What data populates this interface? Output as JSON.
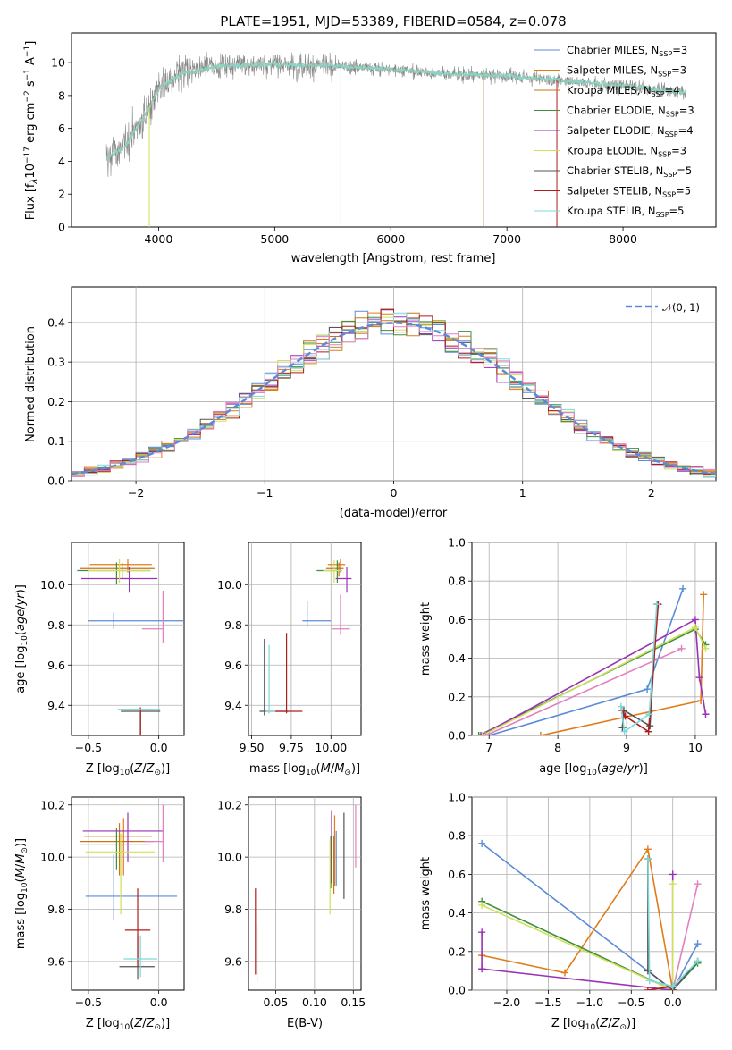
{
  "figure_title": "PLATE=1951, MJD=53389, FIBERID=0584, z=0.078",
  "colors": {
    "Chabrier MILES": "#5b8bd8",
    "Salpeter MILES": "#e07b1a",
    "Kroupa MILES": "#c87514",
    "Chabrier ELODIE": "#3f8f3f",
    "Salpeter ELODIE": "#9932b4",
    "Kroupa ELODIE": "#cfe05a",
    "Chabrier STELIB": "#555555",
    "Salpeter STELIB": "#b01c1c",
    "Kroupa STELIB": "#7fd8d8",
    "pink": "#e27fc0"
  },
  "chart_data": [
    {
      "id": "spectrum",
      "type": "line",
      "title": "PLATE=1951, MJD=53389, FIBERID=0584, z=0.078",
      "xlabel": "wavelength [Angstrom, rest frame]",
      "ylabel": "Flux [fλ10⁻¹⁷ erg cm⁻² s⁻¹ A⁻¹]",
      "xlim": [
        3250,
        8800
      ],
      "ylim": [
        0,
        11.8
      ],
      "xticks": [
        4000,
        5000,
        6000,
        7000,
        8000
      ],
      "yticks": [
        0,
        2,
        4,
        6,
        8,
        10
      ],
      "grid": false,
      "legend_position": "right",
      "legend": [
        "Chabrier MILES, N_SSP=3",
        "Salpeter MILES, N_SSP=3",
        "Kroupa MILES, N_SSP=4",
        "Chabrier ELODIE, N_SSP=3",
        "Salpeter ELODIE, N_SSP=4",
        "Kroupa ELODIE, N_SSP=3",
        "Chabrier STELIB, N_SSP=5",
        "Salpeter STELIB, N_SSP=5",
        "Kroupa STELIB, N_SSP=5"
      ],
      "data_range_x": [
        3550,
        8540
      ],
      "continuum": {
        "x": [
          3550,
          3700,
          3900,
          4000,
          4200,
          4500,
          5000,
          5500,
          6000,
          6500,
          7000,
          7500,
          8000,
          8500
        ],
        "y": [
          4.2,
          4.8,
          7.0,
          8.4,
          9.3,
          9.8,
          9.9,
          9.8,
          9.6,
          9.3,
          9.2,
          8.9,
          8.6,
          8.2
        ]
      }
    },
    {
      "id": "residuals",
      "type": "step",
      "xlabel": "(data-model)/error",
      "ylabel": "Normed distribution",
      "xlim": [
        -2.5,
        2.5
      ],
      "ylim": [
        0,
        0.49
      ],
      "xticks": [
        -2,
        -1,
        0,
        1,
        2
      ],
      "yticks": [
        0.0,
        0.1,
        0.2,
        0.3,
        0.4
      ],
      "grid": true,
      "legend_position": "top-right",
      "legend_label": "𝒩(0, 1)",
      "bin_width": 0.1
    },
    {
      "id": "age-vs-Z",
      "type": "errorbar",
      "xlabel": "Z [log₁₀(Z/Z⊙)]",
      "ylabel": "age  [log₁₀(age/yr)]",
      "xlim": [
        -0.62,
        0.18
      ],
      "ylim": [
        9.25,
        10.21
      ],
      "xticks": [
        -0.5,
        0.0
      ],
      "yticks": [
        9.4,
        9.6,
        9.8,
        10.0
      ],
      "grid": true,
      "points": [
        {
          "color": "Chabrier MILES",
          "x": -0.32,
          "xerr": [
            0.18,
            0.52
          ],
          "y": 9.82,
          "yerr": [
            0.04,
            0.04
          ]
        },
        {
          "color": "Salpeter MILES",
          "x": -0.22,
          "xerr": [
            0.27,
            0.17
          ],
          "y": 10.1,
          "yerr": [
            0.04,
            0.03
          ]
        },
        {
          "color": "Kroupa MILES",
          "x": -0.26,
          "xerr": [
            0.3,
            0.23
          ],
          "y": 10.08,
          "yerr": [
            0.05,
            0.03
          ]
        },
        {
          "color": "Chabrier ELODIE",
          "x": -0.3,
          "xerr": [
            0.28,
            0.24
          ],
          "y": 10.07,
          "yerr": [
            0.07,
            0.04
          ]
        },
        {
          "color": "Salpeter ELODIE",
          "x": -0.21,
          "xerr": [
            0.34,
            0.2
          ],
          "y": 10.03,
          "yerr": [
            0.07,
            0.06
          ]
        },
        {
          "color": "Kroupa ELODIE",
          "x": -0.28,
          "xerr": [
            0.22,
            0.22
          ],
          "y": 10.07,
          "yerr": [
            0.06,
            0.06
          ]
        },
        {
          "color": "Chabrier STELIB",
          "x": -0.13,
          "xerr": [
            0.14,
            0.14
          ],
          "y": 9.37,
          "yerr": [
            0.36,
            0.01
          ]
        },
        {
          "color": "Salpeter STELIB",
          "x": -0.13,
          "xerr": [
            0.0,
            0.0
          ],
          "y": 9.38,
          "yerr": [
            0.37,
            0.01
          ]
        },
        {
          "color": "Kroupa STELIB",
          "x": -0.14,
          "xerr": [
            0.15,
            0.15
          ],
          "y": 9.38,
          "yerr": [
            0.37,
            0.01
          ]
        },
        {
          "color": "pink",
          "x": 0.03,
          "xerr": [
            0.15,
            0.0
          ],
          "y": 9.78,
          "yerr": [
            0.07,
            0.19
          ]
        }
      ]
    },
    {
      "id": "age-vs-mass",
      "type": "errorbar",
      "xlabel": "mass [log₁₀(M/M⊙)]",
      "ylabel": "",
      "xlim": [
        9.48,
        10.19
      ],
      "ylim": [
        9.25,
        10.21
      ],
      "xticks": [
        9.5,
        9.75,
        10.0
      ],
      "yticks": [
        9.4,
        9.6,
        9.8,
        10.0
      ],
      "grid": true,
      "points": [
        {
          "color": "Chabrier MILES",
          "x": 9.85,
          "xerr": [
            0.03,
            0.15
          ],
          "y": 9.82,
          "yerr": [
            0.03,
            0.1
          ]
        },
        {
          "color": "Salpeter MILES",
          "x": 10.06,
          "xerr": [
            0.08,
            0.03
          ],
          "y": 10.1,
          "yerr": [
            0.04,
            0.03
          ]
        },
        {
          "color": "Kroupa MILES",
          "x": 10.05,
          "xerr": [
            0.08,
            0.03
          ],
          "y": 10.08,
          "yerr": [
            0.04,
            0.03
          ]
        },
        {
          "color": "Chabrier ELODIE",
          "x": 10.04,
          "xerr": [
            0.13,
            0.03
          ],
          "y": 10.07,
          "yerr": [
            0.06,
            0.05
          ]
        },
        {
          "color": "Salpeter ELODIE",
          "x": 10.1,
          "xerr": [
            0.07,
            0.03
          ],
          "y": 10.03,
          "yerr": [
            0.07,
            0.06
          ]
        },
        {
          "color": "Kroupa ELODIE",
          "x": 10.02,
          "xerr": [
            0.07,
            0.05
          ],
          "y": 10.07,
          "yerr": [
            0.06,
            0.05
          ]
        },
        {
          "color": "Chabrier STELIB",
          "x": 9.58,
          "xerr": [
            0.03,
            0.15
          ],
          "y": 9.37,
          "yerr": [
            0.02,
            0.36
          ]
        },
        {
          "color": "Salpeter STELIB",
          "x": 9.72,
          "xerr": [
            0.07,
            0.1
          ],
          "y": 9.37,
          "yerr": [
            0.01,
            0.39
          ]
        },
        {
          "color": "Kroupa STELIB",
          "x": 9.61,
          "xerr": [
            0.02,
            0.04
          ],
          "y": 9.37,
          "yerr": [
            0.01,
            0.33
          ]
        },
        {
          "color": "pink",
          "x": 10.06,
          "xerr": [
            0.05,
            0.06
          ],
          "y": 9.78,
          "yerr": [
            0.03,
            0.17
          ]
        }
      ]
    },
    {
      "id": "mass-weight-vs-age",
      "type": "line",
      "xlabel": "age  [log₁₀(age/yr)]",
      "ylabel": "mass weight",
      "xlim": [
        6.75,
        10.3
      ],
      "ylim": [
        0.0,
        1.0
      ],
      "xticks": [
        7,
        8,
        9,
        10
      ],
      "yticks": [
        0.0,
        0.2,
        0.4,
        0.6,
        0.8,
        1.0
      ],
      "grid": true,
      "series": [
        {
          "color": "Chabrier MILES",
          "x": [
            7.0,
            9.3,
            9.82
          ],
          "y": [
            0.0,
            0.24,
            0.76
          ]
        },
        {
          "color": "Salpeter MILES",
          "x": [
            7.75,
            10.08,
            10.12
          ],
          "y": [
            0.0,
            0.18,
            0.73
          ]
        },
        {
          "color": "Chabrier ELODIE",
          "x": [
            6.85,
            10.0,
            10.15
          ],
          "y": [
            0.0,
            0.55,
            0.47
          ]
        },
        {
          "color": "Salpeter ELODIE",
          "x": [
            6.88,
            10.0,
            10.06,
            10.15
          ],
          "y": [
            0.0,
            0.6,
            0.3,
            0.11
          ]
        },
        {
          "color": "Kroupa ELODIE",
          "x": [
            6.9,
            10.0,
            10.15
          ],
          "y": [
            0.0,
            0.56,
            0.45
          ]
        },
        {
          "color": "pink",
          "x": [
            6.95,
            9.8
          ],
          "y": [
            0.0,
            0.45
          ]
        },
        {
          "color": "Chabrier STELIB",
          "x": [
            8.94,
            8.96,
            9.34,
            9.45
          ],
          "y": [
            0.04,
            0.13,
            0.05,
            0.68
          ]
        },
        {
          "color": "Salpeter STELIB",
          "x": [
            8.93,
            8.98,
            9.32,
            9.46
          ],
          "y": [
            0.13,
            0.1,
            0.02,
            0.68
          ]
        },
        {
          "color": "Kroupa STELIB",
          "x": [
            8.92,
            8.97,
            9.33,
            9.44
          ],
          "y": [
            0.15,
            0.02,
            0.11,
            0.68
          ]
        }
      ]
    },
    {
      "id": "mass-vs-Z",
      "type": "errorbar",
      "xlabel": "Z [log₁₀(Z/Z⊙)]",
      "ylabel": "mass [log₁₀(M/M⊙)]",
      "xlim": [
        -0.62,
        0.18
      ],
      "ylim": [
        9.49,
        10.23
      ],
      "xticks": [
        -0.5,
        0.0
      ],
      "yticks": [
        9.6,
        9.8,
        10.0,
        10.2
      ],
      "grid": true,
      "points": [
        {
          "color": "Chabrier MILES",
          "x": -0.32,
          "xerr": [
            0.2,
            0.45
          ],
          "y": 9.85,
          "yerr": [
            0.09,
            0.16
          ]
        },
        {
          "color": "Salpeter MILES",
          "x": -0.25,
          "xerr": [
            0.28,
            0.2
          ],
          "y": 10.08,
          "yerr": [
            0.15,
            0.07
          ]
        },
        {
          "color": "Kroupa MILES",
          "x": -0.28,
          "xerr": [
            0.28,
            0.24
          ],
          "y": 10.06,
          "yerr": [
            0.13,
            0.07
          ]
        },
        {
          "color": "Chabrier ELODIE",
          "x": -0.3,
          "xerr": [
            0.26,
            0.24
          ],
          "y": 10.05,
          "yerr": [
            0.1,
            0.06
          ]
        },
        {
          "color": "Salpeter ELODIE",
          "x": -0.22,
          "xerr": [
            0.32,
            0.26
          ],
          "y": 10.1,
          "yerr": [
            0.12,
            0.07
          ]
        },
        {
          "color": "Kroupa ELODIE",
          "x": -0.27,
          "xerr": [
            0.25,
            0.24
          ],
          "y": 10.02,
          "yerr": [
            0.24,
            0.07
          ]
        },
        {
          "color": "Chabrier STELIB",
          "x": -0.15,
          "xerr": [
            0.13,
            0.12
          ],
          "y": 9.58,
          "yerr": [
            0.05,
            0.12
          ]
        },
        {
          "color": "Salpeter STELIB",
          "x": -0.15,
          "xerr": [
            0.09,
            0.09
          ],
          "y": 9.72,
          "yerr": [
            0.14,
            0.16
          ]
        },
        {
          "color": "Kroupa STELIB",
          "x": -0.13,
          "xerr": [
            0.12,
            0.12
          ],
          "y": 9.61,
          "yerr": [
            0.07,
            0.09
          ]
        },
        {
          "color": "pink",
          "x": 0.03,
          "xerr": [
            0.13,
            0.0
          ],
          "y": 10.06,
          "yerr": [
            0.08,
            0.14
          ]
        }
      ]
    },
    {
      "id": "mass-vs-ebv",
      "type": "errorbar",
      "xlabel": "E(B-V)",
      "ylabel": "",
      "xlim": [
        0.015,
        0.16
      ],
      "ylim": [
        9.49,
        10.23
      ],
      "xticks": [
        0.05,
        0.1,
        0.15
      ],
      "yticks": [
        9.6,
        9.8,
        10.0,
        10.2
      ],
      "grid": true,
      "points": [
        {
          "color": "Chabrier MILES",
          "x": 0.128,
          "xerr": [
            0,
            0
          ],
          "y": 10.0,
          "yerr": [
            0.11,
            0.1
          ]
        },
        {
          "color": "Salpeter MILES",
          "x": 0.126,
          "xerr": [
            0,
            0
          ],
          "y": 10.05,
          "yerr": [
            0.16,
            0.11
          ]
        },
        {
          "color": "Kroupa MILES",
          "x": 0.125,
          "xerr": [
            0,
            0
          ],
          "y": 10.0,
          "yerr": [
            0.14,
            0.08
          ]
        },
        {
          "color": "Chabrier ELODIE",
          "x": 0.121,
          "xerr": [
            0,
            0
          ],
          "y": 10.0,
          "yerr": [
            0.12,
            0.08
          ]
        },
        {
          "color": "Salpeter ELODIE",
          "x": 0.122,
          "xerr": [
            0,
            0
          ],
          "y": 10.05,
          "yerr": [
            0.15,
            0.13
          ]
        },
        {
          "color": "Kroupa ELODIE",
          "x": 0.12,
          "xerr": [
            0,
            0
          ],
          "y": 9.95,
          "yerr": [
            0.17,
            0.12
          ]
        },
        {
          "color": "Chabrier STELIB",
          "x": 0.138,
          "xerr": [
            0,
            0
          ],
          "y": 10.0,
          "yerr": [
            0.16,
            0.17
          ]
        },
        {
          "color": "Salpeter STELIB",
          "x": 0.024,
          "xerr": [
            0,
            0
          ],
          "y": 9.72,
          "yerr": [
            0.17,
            0.16
          ]
        },
        {
          "color": "Kroupa STELIB",
          "x": 0.026,
          "xerr": [
            0,
            0
          ],
          "y": 9.61,
          "yerr": [
            0.09,
            0.13
          ]
        },
        {
          "color": "pink",
          "x": 0.153,
          "xerr": [
            0,
            0
          ],
          "y": 10.06,
          "yerr": [
            0.1,
            0.14
          ]
        }
      ]
    },
    {
      "id": "mass-weight-vs-Z",
      "type": "line",
      "xlabel": "Z [log₁₀(Z/Z⊙)]",
      "ylabel": "mass weight",
      "xlim": [
        -2.42,
        0.52
      ],
      "ylim": [
        0.0,
        1.0
      ],
      "xticks": [
        -2.0,
        -1.5,
        -1.0,
        -0.5,
        0.0
      ],
      "yticks": [
        0.0,
        0.2,
        0.4,
        0.6,
        0.8,
        1.0
      ],
      "grid": true,
      "series": [
        {
          "color": "Chabrier MILES",
          "x": [
            -2.3,
            0.0,
            0.3
          ],
          "y": [
            0.76,
            0.0,
            0.24
          ]
        },
        {
          "color": "Salpeter MILES",
          "x": [
            -2.3,
            -1.3,
            -0.3,
            0.0
          ],
          "y": [
            0.18,
            0.09,
            0.73,
            0.0
          ]
        },
        {
          "color": "Chabrier ELODIE",
          "x": [
            -2.3,
            0.0,
            0.3
          ],
          "y": [
            0.46,
            0.0,
            0.14
          ]
        },
        {
          "color": "Salpeter ELODIE",
          "x": [
            -2.3,
            -2.3,
            0.0,
            0.0
          ],
          "y": [
            0.3,
            0.11,
            0.0,
            0.6
          ]
        },
        {
          "color": "Kroupa ELODIE",
          "x": [
            -2.3,
            0.0,
            0.0
          ],
          "y": [
            0.44,
            0.0,
            0.55
          ]
        },
        {
          "color": "pink",
          "x": [
            0.0,
            0.3
          ],
          "y": [
            0.0,
            0.55
          ]
        },
        {
          "color": "Chabrier STELIB",
          "x": [
            -0.3,
            -0.3,
            0.0,
            0.3
          ],
          "y": [
            0.68,
            0.1,
            0.0,
            0.15
          ]
        },
        {
          "color": "Salpeter STELIB",
          "x": [
            -0.3,
            0.0,
            0.0
          ],
          "y": [
            0.0,
            0.02,
            0.0
          ]
        },
        {
          "color": "Kroupa STELIB",
          "x": [
            -0.3,
            -0.28,
            0.0,
            0.3
          ],
          "y": [
            0.68,
            0.05,
            0.02,
            0.15
          ]
        }
      ]
    }
  ]
}
